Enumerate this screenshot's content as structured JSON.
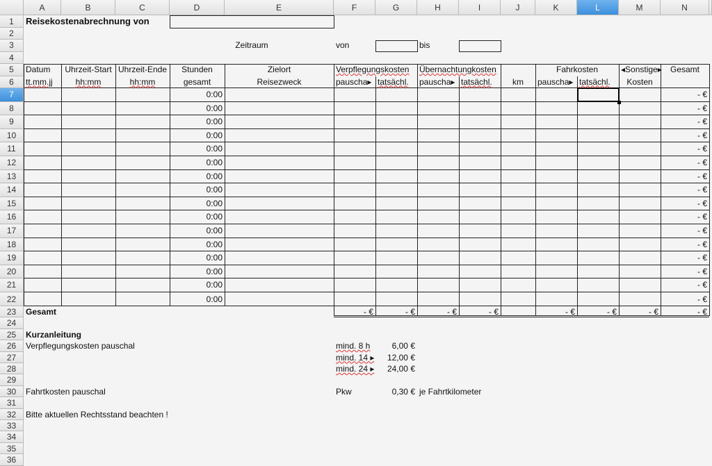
{
  "columns": [
    "A",
    "B",
    "C",
    "D",
    "E",
    "F",
    "G",
    "H",
    "I",
    "J",
    "K",
    "L",
    "M",
    "N"
  ],
  "selected_column": "L",
  "selected_row": 7,
  "row_count": 36,
  "cells": {
    "A1": "Reisekostenabrechnung von",
    "E3": "Zeitraum",
    "F3": "von",
    "H3": "bis",
    "A5": "Datum",
    "A6": "tt.mm.jj",
    "B5": "Uhrzeit-Start",
    "B6": "hh:mm",
    "C5": "Uhrzeit-Ende",
    "C6": "hh:mm",
    "D5": "Stunden",
    "D6": "gesamt",
    "E5": "Zielort",
    "E6": "Reisezweck",
    "F5": "Verpflegungskosten",
    "F6": "pauscha▸",
    "G6": "tatsächl.",
    "H5": "Übernachtungkosten",
    "H6": "pauscha▸",
    "I6": "tatsächl.",
    "J6": "km",
    "K5": "Fahrkosten",
    "K6": "pauscha▸",
    "L6": "tatsächl.",
    "M5": "◂Sonstige▸",
    "M6": "Kosten",
    "N5": "Gesamt",
    "A23": "Gesamt",
    "F23": "-  €",
    "G23": "-  €",
    "H23": "-  €",
    "I23": "-  €",
    "K23": "-  €",
    "L23": "-  €",
    "M23": "-  €",
    "N23": "-  €",
    "A25": "Kurzanleitung",
    "A26": "Verpflegungskosten pauschal",
    "F26": "mind. 8 h",
    "G26": "6,00 €",
    "F27": "mind. 14 ▸",
    "G27": "12,00 €",
    "F28": "mind. 24 ▸",
    "G28": "24,00 €",
    "A30": "Fahrtkosten pauschal",
    "F30": "Pkw",
    "G30": "0,30 €",
    "H30": "je Fahrtkilometer",
    "A32": "Bitte aktuellen Rechtsstand beachten !"
  },
  "stunden_default": "0:00",
  "gesamt_default": "-  €"
}
